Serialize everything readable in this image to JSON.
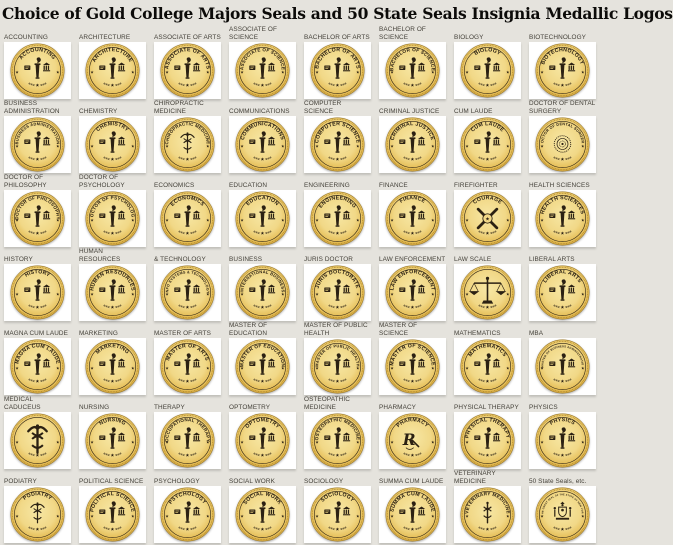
{
  "title": "Choice of Gold College Majors Seals and 50 State Seals Insignia Medallic Logos",
  "colors": {
    "page_bg": "#e5e3dd",
    "tile_bg": "#ffffff",
    "gold_light": "#f7e7a4",
    "gold_mid": "#f1d887",
    "gold_deep": "#e5bd55",
    "gold_edge": "#c3922e",
    "rim_stroke": "#9b7722",
    "emblem_dark": "#2b2113",
    "label_text": "#45423a",
    "title_text": "#0c0b09"
  },
  "grid": {
    "columns": 8,
    "rows": 7,
    "cells": [
      {
        "label": "ACCOUNTING",
        "ring": "ACCOUNTING",
        "emblem": "torch"
      },
      {
        "label": "ARCHITECTURE",
        "ring": "ARCHITECTURE",
        "emblem": "torch"
      },
      {
        "label": "ASSOCIATE OF ARTS",
        "ring": "ASSOCIATE OF ARTS",
        "emblem": "torch"
      },
      {
        "label": "ASSOCIATE OF SCIENCE",
        "ring": "ASSOCIATE OF SCIENCE",
        "emblem": "torch"
      },
      {
        "label": "BACHELOR OF ARTS",
        "ring": "BACHELOR OF ARTS",
        "emblem": "torch"
      },
      {
        "label": "BACHELOR OF SCIENCE",
        "ring": "BACHELOR OF SCIENCE",
        "emblem": "torch"
      },
      {
        "label": "BIOLOGY",
        "ring": "BIOLOGY",
        "emblem": "torch"
      },
      {
        "label": "BIOTECHNOLOGY",
        "ring": "BIOTECHNOLOGY",
        "emblem": "torch"
      },
      {
        "label": "BUSINESS ADMINISTRATION",
        "ring": "BUSINESS ADMINISTRATION",
        "emblem": "torch"
      },
      {
        "label": "CHEMISTRY",
        "ring": "CHEMISTRY",
        "emblem": "torch"
      },
      {
        "label": "CHIROPRACTIC MEDICINE",
        "ring": "CHIROPRACTIC MEDICINE",
        "emblem": "caduceus"
      },
      {
        "label": "COMMUNICATIONS",
        "ring": "COMMUNICATIONS",
        "emblem": "torch"
      },
      {
        "label": "COMPUTER SCIENCE",
        "ring": "COMPUTER SCIENCE",
        "emblem": "torch"
      },
      {
        "label": "CRIMINAL JUSTICE",
        "ring": "CRIMINAL JUSTICE",
        "emblem": "torch"
      },
      {
        "label": "CUM LAUDE",
        "ring": "CUM LAUDE",
        "emblem": "torch"
      },
      {
        "label": "DOCTOR OF DENTAL SURGERY",
        "ring": "DOCTOR OF DENTAL SURGERY",
        "emblem": "rosette"
      },
      {
        "label": "DOCTOR OF PHILOSOPHY",
        "ring": "DOCTOR OF PHILOSOPHY",
        "emblem": "torch"
      },
      {
        "label": "DOCTOR OF PSYCHOLOGY",
        "ring": "DOCTOR OF PSYCHOLOGY",
        "emblem": "torch"
      },
      {
        "label": "ECONOMICS",
        "ring": "ECONOMICS",
        "emblem": "torch"
      },
      {
        "label": "EDUCATION",
        "ring": "EDUCATION",
        "emblem": "torch"
      },
      {
        "label": "ENGINEERING",
        "ring": "ENGINEERING",
        "emblem": "torch"
      },
      {
        "label": "FINANCE",
        "ring": "FINANCE",
        "emblem": "torch"
      },
      {
        "label": "FIREFIGHTER",
        "ring": "COURAGE",
        "emblem": "axes"
      },
      {
        "label": "HEALTH SCIENCES",
        "ring": "HEALTH SCIENCES",
        "emblem": "torch"
      },
      {
        "label": "HISTORY",
        "ring": "HISTORY",
        "emblem": "torch"
      },
      {
        "label": "HUMAN RESOURCES",
        "ring": "HUMAN RESOURCES",
        "emblem": "torch"
      },
      {
        "label": "& TECHNOLOGY",
        "ring": "INFO SYSTEMS & TECHNOLOGY",
        "emblem": "torch"
      },
      {
        "label": "BUSINESS",
        "ring": "INTERNATIONAL BUSINESS",
        "emblem": "torch"
      },
      {
        "label": "JURIS DOCTOR",
        "ring": "JURIS DOCTORATE",
        "emblem": "torch"
      },
      {
        "label": "LAW ENFORCEMENT",
        "ring": "LAW ENFORCEMENT",
        "emblem": "torch"
      },
      {
        "label": "LAW SCALE",
        "ring": "",
        "emblem": "scale"
      },
      {
        "label": "LIBERAL ARTS",
        "ring": "LIBERAL ARTS",
        "emblem": "torch"
      },
      {
        "label": "MAGNA CUM LAUDE",
        "ring": "MAGNA CUM LAUDE",
        "emblem": "torch"
      },
      {
        "label": "MARKETING",
        "ring": "MARKETING",
        "emblem": "torch"
      },
      {
        "label": "MASTER OF ARTS",
        "ring": "MASTER OF ARTS",
        "emblem": "torch"
      },
      {
        "label": "MASTER OF EDUCATION",
        "ring": "MASTER OF EDUCATION",
        "emblem": "torch"
      },
      {
        "label": "MASTER OF PUBLIC HEALTH",
        "ring": "MASTER OF PUBLIC HEALTH",
        "emblem": "torch"
      },
      {
        "label": "MASTER OF SCIENCE",
        "ring": "MASTER OF SCIENCE",
        "emblem": "torch"
      },
      {
        "label": "MATHEMATICS",
        "ring": "MATHEMATICS",
        "emblem": "torch"
      },
      {
        "label": "MBA",
        "ring": "MASTER OF BUSINESS ADMINISTRATION",
        "emblem": "torch"
      },
      {
        "label": "MEDICAL CADUCEUS",
        "ring": "",
        "emblem": "caduceus-large"
      },
      {
        "label": "NURSING",
        "ring": "NURSING",
        "emblem": "torch"
      },
      {
        "label": "THERAPY",
        "ring": "OCCUPATIONAL THERAPY",
        "emblem": "torch"
      },
      {
        "label": "OPTOMETRY",
        "ring": "OPTOMETRY",
        "emblem": "torch"
      },
      {
        "label": "OSTEOPATHIC MEDICINE",
        "ring": "OSTEOPATHIC MEDICINE",
        "emblem": "torch"
      },
      {
        "label": "PHARMACY",
        "ring": "PHARMACY",
        "emblem": "rx"
      },
      {
        "label": "PHYSICAL THERAPY",
        "ring": "PHYSICAL THERAPY",
        "emblem": "torch"
      },
      {
        "label": "PHYSICS",
        "ring": "PHYSICS",
        "emblem": "torch"
      },
      {
        "label": "PODIATRY",
        "ring": "PODIATRY",
        "emblem": "caduceus"
      },
      {
        "label": "POLITICAL SCIENCE",
        "ring": "POLITICAL SCIENCE",
        "emblem": "torch"
      },
      {
        "label": "PSYCHOLOGY",
        "ring": "PSYCHOLOGY",
        "emblem": "torch"
      },
      {
        "label": "SOCIAL WORK",
        "ring": "SOCIAL WORK",
        "emblem": "torch"
      },
      {
        "label": "SOCIOLOGY",
        "ring": "SOCIOLOGY",
        "emblem": "torch"
      },
      {
        "label": "SUMMA CUM LAUDE",
        "ring": "SUMMA CUM LAUDE",
        "emblem": "torch"
      },
      {
        "label": "VETERINARY MEDICINE",
        "ring": "VETERINARY MEDICINE",
        "emblem": "staff"
      },
      {
        "label": "50 State Seals, etc.",
        "ring": "THE GREAT SEAL OF THE STATE OF NEW YORK",
        "emblem": "crest"
      }
    ]
  }
}
